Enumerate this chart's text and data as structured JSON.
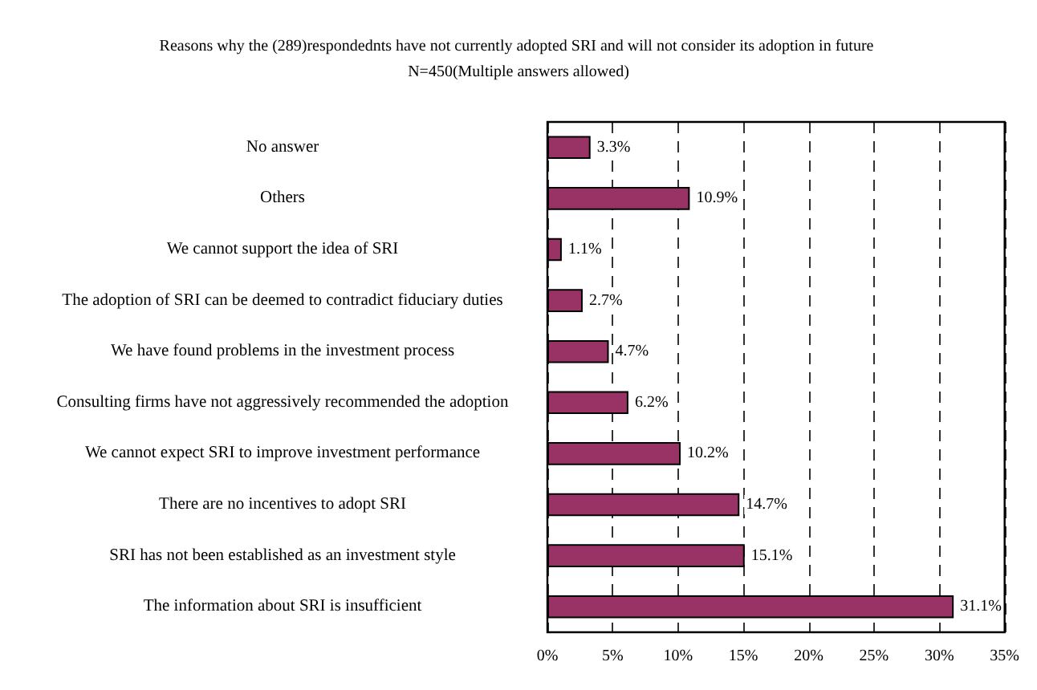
{
  "chart_data": {
    "type": "bar",
    "orientation": "horizontal",
    "title": "Reasons why the (289)respondednts have not currently adopted SRI and will not consider its adoption in future N=450(Multiple answers allowed)",
    "categories": [
      "No answer",
      "Others",
      "We cannot support the idea of SRI",
      "The adoption of SRI can be deemed to contradict fiduciary duties",
      "We have found problems in the investment process",
      "Consulting firms have not aggressively recommended the adoption",
      "We cannot expect SRI to improve investment performance",
      "There are no incentives to adopt SRI",
      "SRI has not been established as an investment style",
      "The information about SRI is insufficient"
    ],
    "values": [
      3.3,
      10.9,
      1.1,
      2.7,
      4.7,
      6.2,
      10.2,
      14.7,
      15.1,
      31.1
    ],
    "value_labels": [
      "3.3%",
      "10.9%",
      "1.1%",
      "2.7%",
      "4.7%",
      "6.2%",
      "10.2%",
      "14.7%",
      "15.1%",
      "31.1%"
    ],
    "color": "#993366",
    "xlim": [
      0,
      35
    ],
    "xticks": [
      {
        "value": 0,
        "label": "0%"
      },
      {
        "value": 5,
        "label": "5%"
      },
      {
        "value": 10,
        "label": "10%"
      },
      {
        "value": 15,
        "label": "15%"
      },
      {
        "value": 20,
        "label": "20%"
      },
      {
        "value": 25,
        "label": "25%"
      },
      {
        "value": 30,
        "label": "30%"
      },
      {
        "value": 35,
        "label": "35%"
      }
    ],
    "grid": "x"
  }
}
